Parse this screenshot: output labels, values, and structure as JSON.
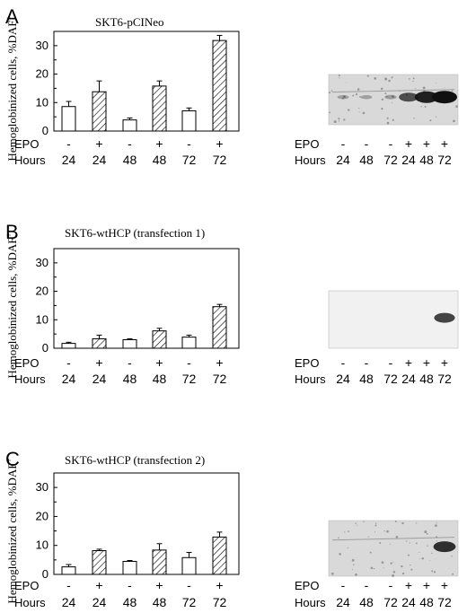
{
  "ylabel": "Hemoglobinized cells, %DAF",
  "ylabel_sup": "+",
  "row_labels": {
    "epo": "EPO",
    "hours": "Hours"
  },
  "colors": {
    "ink": "#000000",
    "background": "#ffffff",
    "blot_bg": "#d9d9d9",
    "band": "#111111"
  },
  "chart_data": [
    {
      "type": "bar",
      "panel": "A",
      "title": "SKT6-pCINeo",
      "ylim": [
        0,
        35
      ],
      "yticks": [
        0,
        10,
        20,
        30
      ],
      "categories": [
        "24",
        "24",
        "48",
        "48",
        "72",
        "72"
      ],
      "epo": [
        "-",
        "+",
        "-",
        "+",
        "-",
        "+"
      ],
      "values": [
        8.6,
        13.8,
        3.9,
        15.8,
        7.1,
        31.8
      ],
      "errors": [
        1.8,
        3.8,
        0.7,
        1.8,
        1.0,
        1.8
      ],
      "hatched": [
        false,
        true,
        false,
        true,
        false,
        true
      ],
      "blot": {
        "epo": [
          "-",
          "-",
          "-",
          "+",
          "+",
          "+"
        ],
        "hours": [
          "24",
          "48",
          "72",
          "24",
          "48",
          "72"
        ],
        "band_intensity": [
          0.05,
          0.05,
          0.08,
          0.6,
          0.9,
          1.0
        ]
      }
    },
    {
      "type": "bar",
      "panel": "B",
      "title": "SKT6-wtHCP (transfection 1)",
      "ylim": [
        0,
        35
      ],
      "yticks": [
        0,
        10,
        20,
        30
      ],
      "categories": [
        "24",
        "24",
        "48",
        "48",
        "72",
        "72"
      ],
      "epo": [
        "-",
        "+",
        "-",
        "+",
        "-",
        "+"
      ],
      "values": [
        1.7,
        3.3,
        3.0,
        6.1,
        3.9,
        14.6
      ],
      "errors": [
        0.4,
        1.3,
        0.3,
        0.9,
        0.7,
        0.8
      ],
      "hatched": [
        false,
        true,
        false,
        true,
        false,
        true
      ],
      "blot": {
        "epo": [
          "-",
          "-",
          "-",
          "+",
          "+",
          "+"
        ],
        "hours": [
          "24",
          "48",
          "72",
          "24",
          "48",
          "72"
        ],
        "band_intensity": [
          0,
          0,
          0,
          0,
          0,
          0.7
        ]
      }
    },
    {
      "type": "bar",
      "panel": "C",
      "title": "SKT6-wtHCP (transfection 2)",
      "ylim": [
        0,
        35
      ],
      "yticks": [
        0,
        10,
        20,
        30
      ],
      "categories": [
        "24",
        "24",
        "48",
        "48",
        "72",
        "72"
      ],
      "epo": [
        "-",
        "+",
        "-",
        "+",
        "-",
        "+"
      ],
      "values": [
        2.6,
        8.2,
        4.5,
        8.4,
        5.8,
        12.9
      ],
      "errors": [
        0.8,
        0.5,
        0.3,
        2.2,
        1.8,
        1.7
      ],
      "hatched": [
        false,
        true,
        false,
        true,
        false,
        true
      ],
      "blot": {
        "epo": [
          "-",
          "-",
          "-",
          "+",
          "+",
          "+"
        ],
        "hours": [
          "24",
          "48",
          "72",
          "24",
          "48",
          "72"
        ],
        "band_intensity": [
          0,
          0,
          0,
          0,
          0,
          0.8
        ]
      }
    }
  ]
}
